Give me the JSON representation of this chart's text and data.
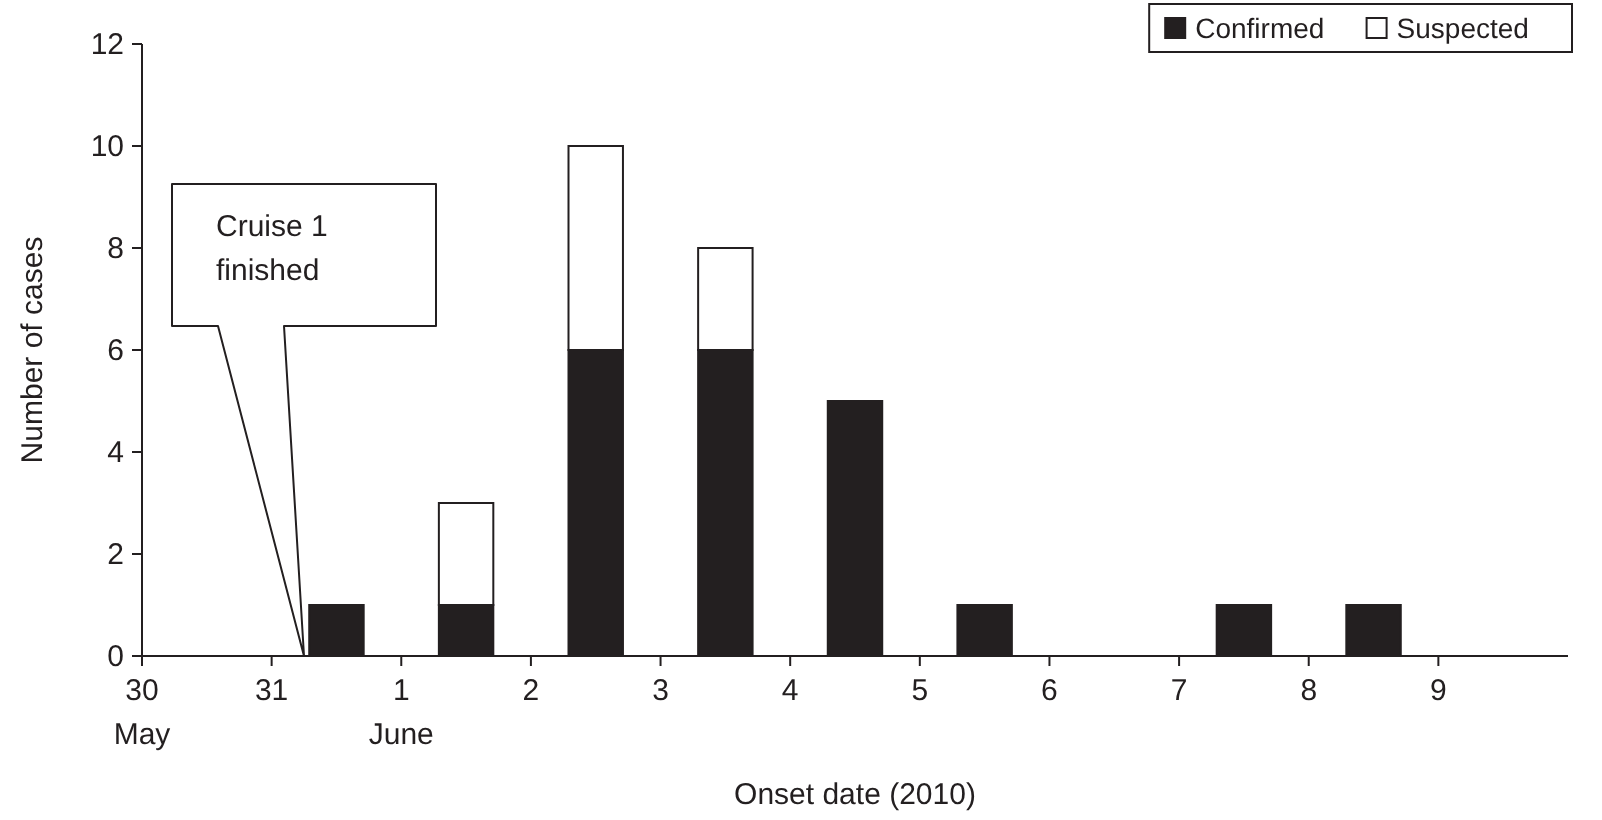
{
  "chart_data": {
    "type": "bar",
    "stacked": true,
    "xlabel": "Onset date (2010)",
    "ylabel": "Number of cases",
    "x": [
      "2010-05-31T12:00",
      "2010-06-01T12:00",
      "2010-06-02T12:00",
      "2010-06-03T12:00",
      "2010-06-04T12:00",
      "2010-06-05T12:00",
      "2010-06-07T12:00",
      "2010-06-08T12:00"
    ],
    "series": [
      {
        "name": "Confirmed",
        "color": "#231f20",
        "values": [
          1,
          1,
          6,
          6,
          5,
          1,
          1,
          1
        ]
      },
      {
        "name": "Suspected",
        "color": "#ffffff",
        "values": [
          null,
          2,
          4,
          2,
          null,
          null,
          null,
          null
        ]
      }
    ],
    "xlim": [
      "2010-05-30",
      "2010-06-10"
    ],
    "xticks": [
      {
        "value": "2010-05-30",
        "label": "30\nMay"
      },
      {
        "value": "2010-05-31",
        "label": "31"
      },
      {
        "value": "2010-06-01",
        "label": "1\nJune"
      },
      {
        "value": "2010-06-02",
        "label": "2"
      },
      {
        "value": "2010-06-03",
        "label": "3"
      },
      {
        "value": "2010-06-04",
        "label": "4"
      },
      {
        "value": "2010-06-05",
        "label": "5"
      },
      {
        "value": "2010-06-06",
        "label": "6"
      },
      {
        "value": "2010-06-07",
        "label": "7"
      },
      {
        "value": "2010-06-08",
        "label": "8"
      },
      {
        "value": "2010-06-09",
        "label": "9"
      }
    ],
    "ylim": [
      0,
      12
    ],
    "yticks": [
      0,
      2,
      4,
      6,
      8,
      10,
      12
    ],
    "grid": false,
    "legend": "top right",
    "annotations": [
      "Cruise 1\nfinished"
    ]
  }
}
